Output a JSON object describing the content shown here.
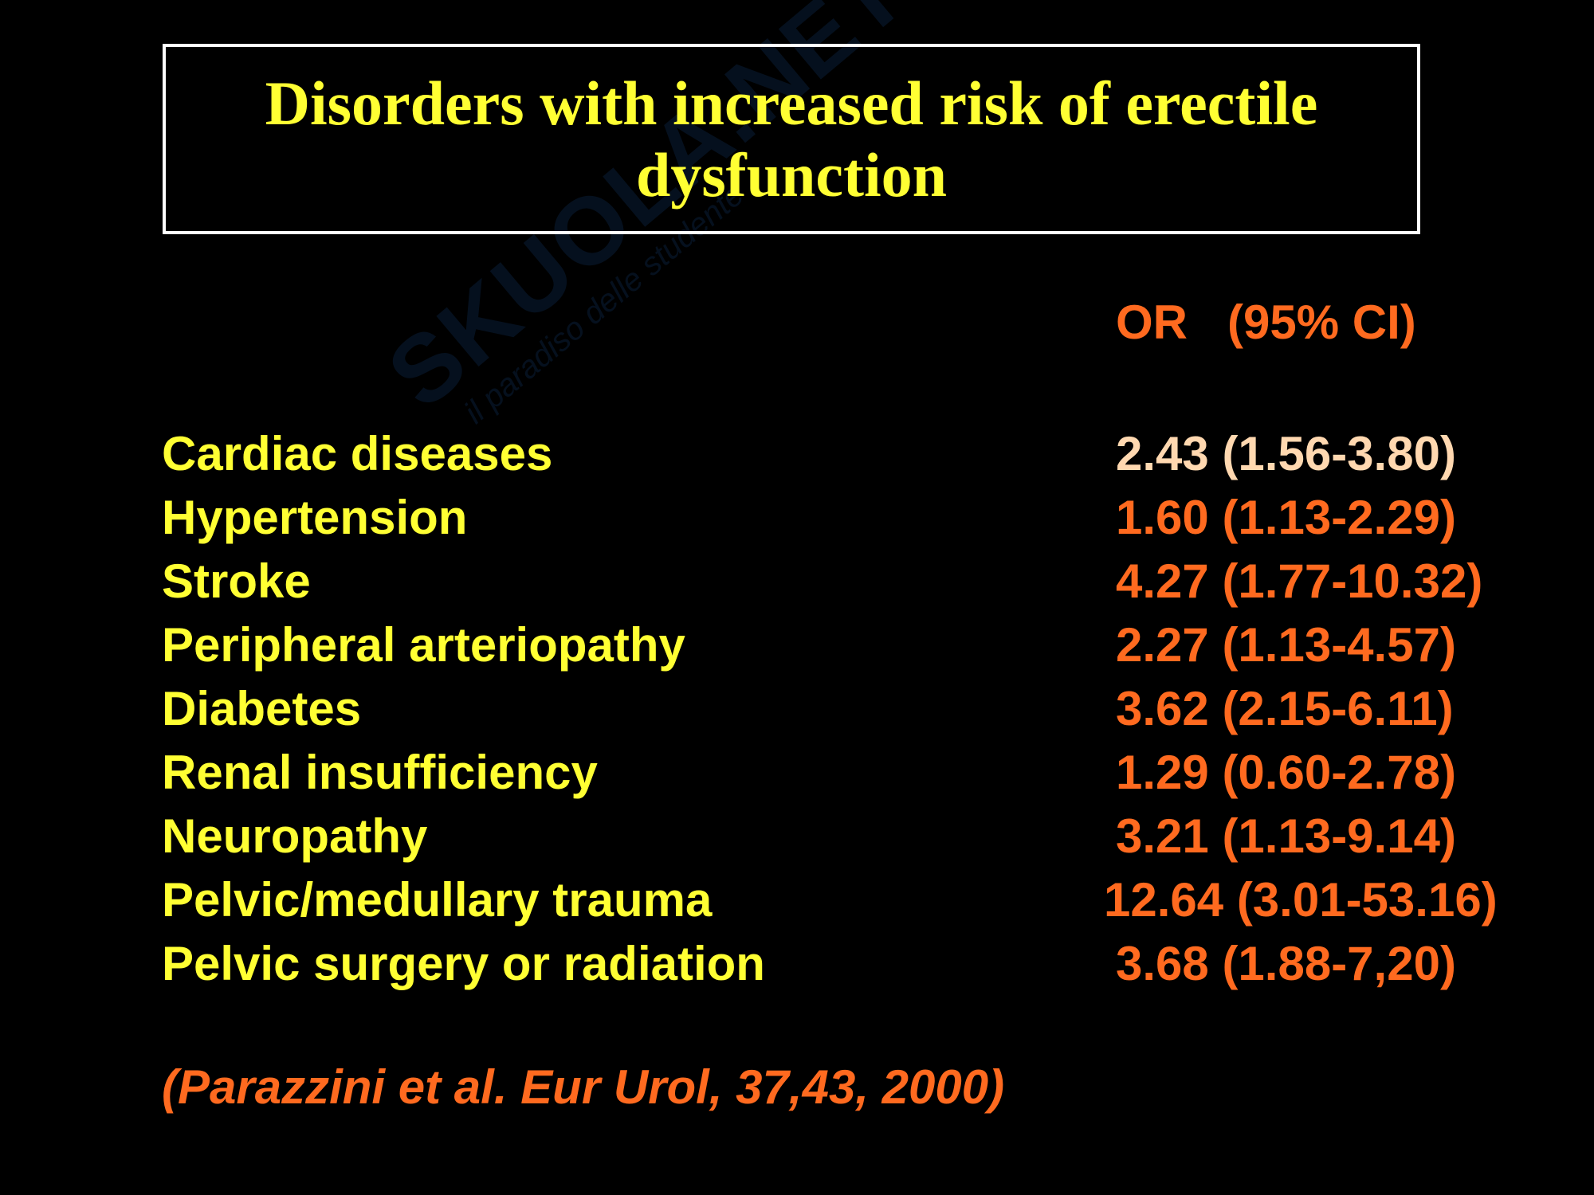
{
  "title": "Disorders with increased risk of erectile dysfunction",
  "watermark": {
    "brand": "SKUOLA.NET",
    "tagline": "il paradiso delle studente"
  },
  "column_header": "OR   (95% CI)",
  "rows": [
    {
      "label": "Cardiac diseases",
      "value": "2.43 (1.56-3.80)"
    },
    {
      "label": "Hypertension",
      "value": "1.60 (1.13-2.29)"
    },
    {
      "label": "Stroke",
      "value": "4.27 (1.77-10.32)"
    },
    {
      "label": "Peripheral arteriopathy",
      "value": "2.27 (1.13-4.57)"
    },
    {
      "label": "Diabetes",
      "value": "3.62 (2.15-6.11)"
    },
    {
      "label": "Renal insufficiency",
      "value": "1.29 (0.60-2.78)"
    },
    {
      "label": "Neuropathy",
      "value": "3.21 (1.13-9.14)"
    },
    {
      "label": "Pelvic/medullary trauma",
      "value": "12.64 (3.01-53.16)"
    },
    {
      "label": "Pelvic surgery or radiation",
      "value": "3.68 (1.88-7,20)"
    }
  ],
  "citation": "(Parazzini et al. Eur Urol, 37,43, 2000)",
  "colors": {
    "background": "#000000",
    "title": "#ffff33",
    "label": "#ffff33",
    "value": "#ff6a1f",
    "first_value": "#ffd8b0",
    "border": "#ffffff"
  }
}
